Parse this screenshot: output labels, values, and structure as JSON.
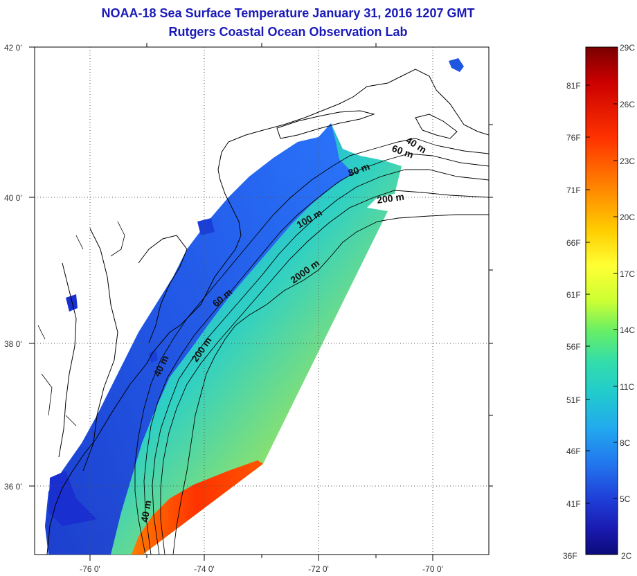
{
  "header": {
    "title_line1": "NOAA-18 Sea Surface Temperature January 31, 2016 1207 GMT",
    "title_line2": "Rutgers Coastal Ocean Observation Lab"
  },
  "map": {
    "lat_labels": [
      "42 0'",
      "40 0'",
      "38 0'",
      "36 0'"
    ],
    "lon_labels": [
      "-76 0'",
      "-74 0'",
      "-72 0'",
      "-70 0'"
    ],
    "contour_labels": [
      "40 m",
      "60 m",
      "80 m",
      "200 m",
      "100 m",
      "2000 m",
      "60 m",
      "200 m",
      "40 m",
      "40 m"
    ],
    "colors": {
      "coastline": "#000000",
      "graticule": "#555555"
    }
  },
  "colorbar": {
    "celsius_labels": [
      "29C",
      "26C",
      "23C",
      "20C",
      "17C",
      "14C",
      "11C",
      "8C",
      "5C",
      "2C"
    ],
    "fahrenheit_labels": [
      "81F",
      "76F",
      "71F",
      "66F",
      "61F",
      "56F",
      "51F",
      "46F",
      "41F",
      "36F"
    ],
    "gradient": [
      "#7a0000",
      "#cc0000",
      "#ff3300",
      "#ff8800",
      "#ffcc00",
      "#ffff33",
      "#ccff33",
      "#66ee66",
      "#33ddaa",
      "#22cccc",
      "#22aaee",
      "#2277ee",
      "#1f3fd9",
      "#1a1ab0",
      "#0b0b7a"
    ]
  }
}
